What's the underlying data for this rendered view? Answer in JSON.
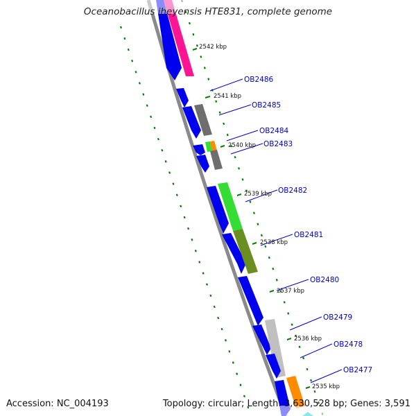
{
  "title": "Oceanobacillus iheyensis HTE831, complete genome",
  "accession": "Accession: NC_004193",
  "topology": "Topology: circular; Length: 3,630,528 bp; Genes: 3,591",
  "colors": {
    "backbone": "#8a8a8a",
    "tick": "#0a7a0a",
    "forward_cds": "#0000ee",
    "label_line": "#0000cc",
    "magenta": "#ff1493",
    "grey": "#6e6e6e",
    "light_green": "#33dd33",
    "orange": "#ff8c00",
    "olive": "#6b8e23",
    "silver": "#c0c0c0",
    "cyan": "#00cccc"
  },
  "scale_labels": [
    "2542 kbp",
    "2541 kbp",
    "2540 kbp",
    "2539 kbp",
    "2538 kbp",
    "2537 kbp",
    "2536 kbp",
    "2535 kbp"
  ],
  "gene_labels": [
    "OB2486",
    "OB2485",
    "OB2484",
    "OB2483",
    "OB2482",
    "OB2481",
    "OB2480",
    "OB2479",
    "OB2478",
    "OB2477"
  ]
}
